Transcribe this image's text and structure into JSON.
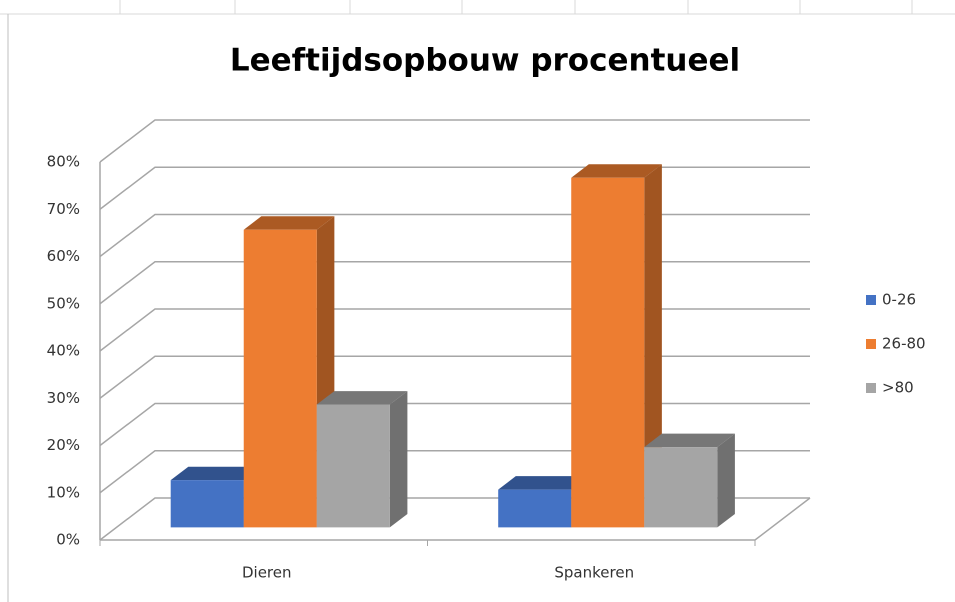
{
  "chart_data": {
    "type": "bar3d",
    "title": "Leeftijdsopbouw procentueel",
    "categories": [
      "Dieren",
      "Spankeren"
    ],
    "series": [
      {
        "name": "0-26",
        "color": "#4472c4",
        "values": [
          10,
          8
        ]
      },
      {
        "name": "26-80",
        "color": "#ed7d31",
        "values": [
          63,
          74
        ]
      },
      {
        "name": ">80",
        "color": "#a5a5a5",
        "values": [
          26,
          17
        ]
      }
    ],
    "ylim": [
      0,
      80
    ],
    "yticks": [
      {
        "value": 0,
        "label": "0%"
      },
      {
        "value": 10,
        "label": "10%"
      },
      {
        "value": 20,
        "label": "20%"
      },
      {
        "value": 30,
        "label": "30%"
      },
      {
        "value": 40,
        "label": "40%"
      },
      {
        "value": 50,
        "label": "50%"
      },
      {
        "value": 60,
        "label": "60%"
      },
      {
        "value": 70,
        "label": "70%"
      },
      {
        "value": 80,
        "label": "80%"
      }
    ],
    "grid": true,
    "legend": "right"
  }
}
